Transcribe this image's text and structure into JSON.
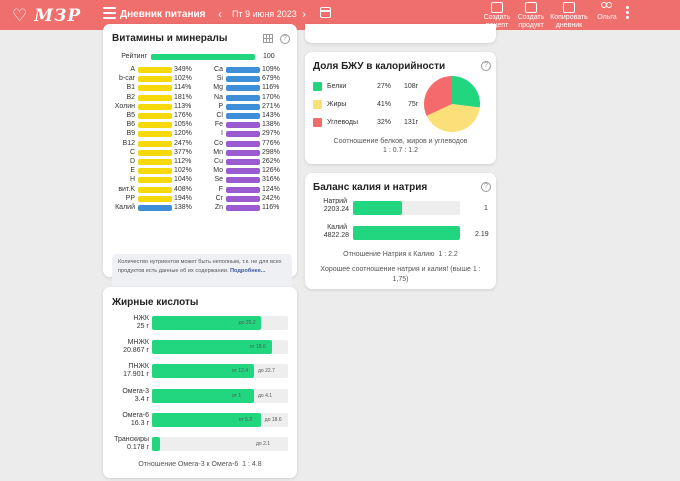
{
  "header": {
    "logo": "МЗР",
    "title": "Дневник питания",
    "date": "Пт 9 июня 2023",
    "actions": [
      {
        "label1": "Создать",
        "label2": "рецепт"
      },
      {
        "label1": "Создать",
        "label2": "продукт"
      },
      {
        "label1": "Копировать",
        "label2": "дневник"
      },
      {
        "label1": "Ольга",
        "label2": ""
      }
    ]
  },
  "vitamins": {
    "title": "Витамины и минералы",
    "rating_label": "Рейтинг",
    "rating_value": "100",
    "rating_fraction": 1.0,
    "left": [
      {
        "label": "A",
        "pct": "349%"
      },
      {
        "label": "b-car",
        "pct": "102%"
      },
      {
        "label": "B1",
        "pct": "114%"
      },
      {
        "label": "B2",
        "pct": "181%"
      },
      {
        "label": "Холин",
        "pct": "113%"
      },
      {
        "label": "B5",
        "pct": "176%"
      },
      {
        "label": "B6",
        "pct": "105%"
      },
      {
        "label": "B9",
        "pct": "120%"
      },
      {
        "label": "B12",
        "pct": "247%"
      },
      {
        "label": "C",
        "pct": "377%"
      },
      {
        "label": "D",
        "pct": "112%"
      },
      {
        "label": "E",
        "pct": "102%"
      },
      {
        "label": "H",
        "pct": "104%"
      },
      {
        "label": "вит.K",
        "pct": "408%"
      },
      {
        "label": "PP",
        "pct": "194%"
      },
      {
        "label": "Калий",
        "pct": "138%"
      }
    ],
    "right": [
      {
        "label": "Ca",
        "pct": "109%"
      },
      {
        "label": "Si",
        "pct": "679%"
      },
      {
        "label": "Mg",
        "pct": "116%"
      },
      {
        "label": "Na",
        "pct": "170%"
      },
      {
        "label": "P",
        "pct": "271%"
      },
      {
        "label": "Cl",
        "pct": "143%"
      },
      {
        "label": "Fe",
        "pct": "138%"
      },
      {
        "label": "I",
        "pct": "297%"
      },
      {
        "label": "Co",
        "pct": "776%"
      },
      {
        "label": "Mn",
        "pct": "298%"
      },
      {
        "label": "Cu",
        "pct": "262%"
      },
      {
        "label": "Mo",
        "pct": "126%"
      },
      {
        "label": "Se",
        "pct": "316%"
      },
      {
        "label": "F",
        "pct": "124%"
      },
      {
        "label": "Cr",
        "pct": "242%"
      },
      {
        "label": "Zn",
        "pct": "116%"
      }
    ],
    "note": "Количество нутриентов может быть неполным, т.к. не для всех продуктов есть данные об их содержании.",
    "note_link": "Подробнее...",
    "colors": {
      "yellow": "#f5d90a",
      "blue": "#3f8fd8",
      "purple": "#9b5bd0"
    }
  },
  "bju": {
    "title": "Доля БЖУ в калорийности",
    "rows": [
      {
        "name": "Белки",
        "pct": "27%",
        "grams": "108г",
        "color": "#21d67f",
        "value": 27
      },
      {
        "name": "Жиры",
        "pct": "41%",
        "grams": "75г",
        "color": "#fbe07a",
        "value": 41
      },
      {
        "name": "Углеводы",
        "pct": "32%",
        "grams": "131г",
        "color": "#f56b6b",
        "value": 32
      }
    ],
    "ratio_label": "Соотношение белков, жиров и углеводов",
    "ratio_value": "1 : 0.7 : 1.2"
  },
  "kna": {
    "title": "Баланс калия и натрия",
    "rows": [
      {
        "name": "Натрий",
        "amount": "2203.24",
        "ratio": "1",
        "fraction": 0.46
      },
      {
        "name": "Калий",
        "amount": "4822.28",
        "ratio": "2.19",
        "fraction": 1.0
      }
    ],
    "ratio_label": "Отношение Натрия к Калию",
    "ratio_value": "1 : 2.2",
    "comment": "Хорошее соотношение натрия и калия! (выше 1 : 1,75)"
  },
  "fats": {
    "title": "Жирные кислоты",
    "rows": [
      {
        "name": "НЖК",
        "amount": "25 г",
        "range": "до 25.2",
        "fraction": 0.8
      },
      {
        "name": "МНЖК",
        "amount": "20.867 г",
        "range": "от 18.6",
        "fraction": 0.88
      },
      {
        "name": "ПНЖК",
        "amount": "17.901 г",
        "range": "от 12.4",
        "range2": "до 22.7",
        "fraction": 0.75
      },
      {
        "name": "Омега-3",
        "amount": "3.4 г",
        "range": "от 1",
        "range2": "до 4.1",
        "fraction": 0.75
      },
      {
        "name": "Омега-6",
        "amount": "16.3 г",
        "range": "от 5.2",
        "range2": "до 18.6",
        "fraction": 0.8
      },
      {
        "name": "Транскиры",
        "amount": "0.178 г",
        "range": "до 2.1",
        "fraction": 0.06
      }
    ],
    "ratio_label": "Отношение Омега-3 к Омега-6",
    "ratio_value": "1 : 4.8"
  }
}
